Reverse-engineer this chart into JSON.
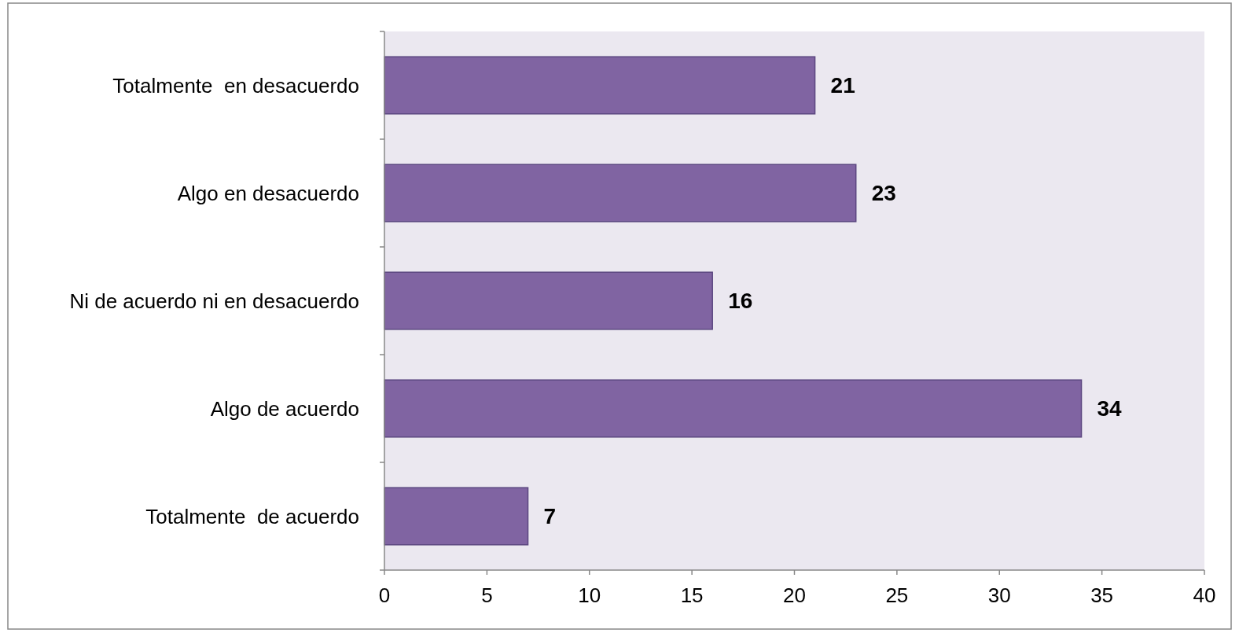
{
  "chart_data": {
    "type": "bar",
    "orientation": "horizontal",
    "categories": [
      "Totalmente  en desacuerdo",
      "Algo en desacuerdo",
      "Ni de acuerdo ni en desacuerdo",
      "Algo de acuerdo",
      "Totalmente  de acuerdo"
    ],
    "values": [
      21,
      23,
      16,
      34,
      7
    ],
    "color": "#8064a2",
    "xlim": [
      0,
      40
    ],
    "xticks": [
      0,
      5,
      10,
      15,
      20,
      25,
      30,
      35,
      40
    ],
    "grid": false,
    "data_labels": true
  }
}
